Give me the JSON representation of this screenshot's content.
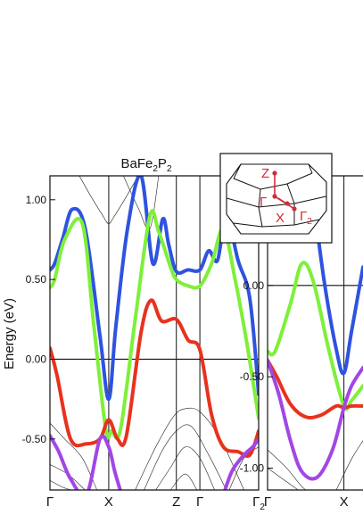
{
  "chart_data": [
    {
      "type": "line",
      "title": "BaFe2P2",
      "title_parts": [
        {
          "text": "BaFe",
          "sub": false
        },
        {
          "text": "2",
          "sub": true
        },
        {
          "text": "P",
          "sub": false
        },
        {
          "text": "2",
          "sub": true
        }
      ],
      "ylabel": "Energy (eV)",
      "ylim": [
        -0.82,
        1.15
      ],
      "y_ticks": [
        1.0,
        0.5,
        0.0,
        -0.5
      ],
      "y_tick_labels": [
        "1.00",
        "0.50",
        "0.00",
        "-0.50"
      ],
      "x_ticks": [
        0,
        1,
        2.15,
        2.55,
        3.55
      ],
      "x_tick_labels": [
        {
          "main": "Γ",
          "sub": ""
        },
        {
          "main": "X",
          "sub": ""
        },
        {
          "main": "Z",
          "sub": ""
        },
        {
          "main": "Γ",
          "sub": ""
        },
        {
          "main": "Γ",
          "sub": "2"
        }
      ],
      "xlim": [
        0,
        3.55
      ],
      "fermi_level": 0.0,
      "series": [
        {
          "color": "#2e53e0",
          "x": [
            0,
            0.08,
            0.22,
            0.38,
            0.6,
            0.85,
            1.0,
            1.12,
            1.32,
            1.55,
            1.75,
            1.92,
            2.02,
            2.15,
            2.35,
            2.55,
            2.7,
            2.85,
            3.0,
            3.2,
            3.4,
            3.55
          ],
          "y": [
            0.56,
            0.6,
            0.76,
            0.94,
            0.82,
            0.15,
            -0.25,
            0.2,
            0.82,
            1.15,
            0.6,
            0.88,
            0.72,
            0.55,
            0.56,
            0.56,
            0.68,
            0.62,
            0.9,
            0.62,
            0.38,
            -0.22
          ]
        },
        {
          "color": "#7ef03a",
          "x": [
            0,
            0.08,
            0.25,
            0.55,
            0.75,
            0.95,
            1.05,
            1.2,
            1.45,
            1.7,
            1.85,
            2.05,
            2.15,
            2.35,
            2.55,
            2.75,
            2.95,
            3.15,
            3.35,
            3.55
          ],
          "y": [
            0.45,
            0.5,
            0.75,
            0.85,
            0.2,
            -0.44,
            -0.45,
            -0.44,
            0.25,
            0.9,
            0.8,
            0.58,
            0.5,
            0.46,
            0.46,
            0.6,
            0.82,
            0.5,
            0.1,
            -0.37
          ]
        },
        {
          "color": "#e8321e",
          "x": [
            0,
            0.12,
            0.35,
            0.62,
            0.85,
            1.0,
            1.15,
            1.3,
            1.55,
            1.72,
            1.9,
            2.15,
            2.35,
            2.55,
            2.75,
            2.95,
            3.2,
            3.4,
            3.55
          ],
          "y": [
            0.07,
            -0.1,
            -0.5,
            -0.53,
            -0.5,
            -0.38,
            -0.5,
            -0.48,
            0.17,
            0.37,
            0.24,
            0.25,
            0.12,
            0.06,
            -0.35,
            -0.55,
            -0.58,
            -0.6,
            -0.45
          ]
        },
        {
          "color": "#a246e6",
          "x": [
            0,
            0.15,
            0.35,
            0.62,
            0.85,
            1.0,
            1.1,
            1.22
          ],
          "y": [
            -0.48,
            -0.58,
            -0.75,
            -0.85,
            -0.5,
            -0.55,
            -0.7,
            -0.85
          ]
        },
        {
          "color": "#a246e6",
          "x": [
            2.95,
            3.1,
            3.3,
            3.45,
            3.55
          ],
          "y": [
            -0.85,
            -0.7,
            -0.6,
            -0.55,
            -0.5
          ]
        }
      ],
      "thin_bands": [
        {
          "x": [
            0.5,
            0.7,
            0.9,
            1.0,
            1.1,
            1.3,
            1.5
          ],
          "y": [
            1.15,
            1.02,
            0.9,
            0.85,
            0.9,
            1.02,
            1.15
          ]
        },
        {
          "x": [
            1.25,
            1.5,
            1.7,
            1.85
          ],
          "y": [
            1.15,
            0.95,
            0.82,
            1.15
          ]
        },
        {
          "x": [
            0,
            0.25,
            0.55,
            0.8
          ],
          "y": [
            -0.4,
            -0.5,
            -0.62,
            -0.82
          ]
        },
        {
          "x": [
            0,
            0.3,
            0.6
          ],
          "y": [
            -0.66,
            -0.72,
            -0.82
          ]
        },
        {
          "x": [
            0,
            0.2,
            0.35
          ],
          "y": [
            -0.76,
            -0.8,
            -0.82
          ]
        },
        {
          "x": [
            1.45,
            1.8,
            2.1,
            2.3,
            2.55,
            2.9,
            3.3
          ],
          "y": [
            -0.82,
            -0.55,
            -0.36,
            -0.31,
            -0.33,
            -0.5,
            -0.82
          ]
        },
        {
          "x": [
            1.6,
            1.9,
            2.15,
            2.4,
            2.7,
            3.0
          ],
          "y": [
            -0.82,
            -0.58,
            -0.45,
            -0.42,
            -0.6,
            -0.82
          ]
        },
        {
          "x": [
            1.8,
            2.05,
            2.3,
            2.55,
            2.8
          ],
          "y": [
            -0.82,
            -0.68,
            -0.55,
            -0.62,
            -0.82
          ]
        },
        {
          "x": [
            2.05,
            2.3,
            2.5
          ],
          "y": [
            -0.82,
            -0.72,
            -0.82
          ]
        },
        {
          "x": [
            3.05,
            3.3,
            3.55
          ],
          "y": [
            -0.82,
            -0.62,
            -0.55
          ]
        }
      ]
    },
    {
      "type": "line",
      "ylim": [
        -1.12,
        0.6
      ],
      "y_ticks": [
        0.0,
        -0.5,
        -1.0
      ],
      "y_tick_labels": [
        "0.00",
        "-0.50",
        "-1.00"
      ],
      "x_ticks": [
        0,
        1
      ],
      "x_tick_labels": [
        {
          "main": "Γ",
          "sub": ""
        },
        {
          "main": "X",
          "sub": ""
        }
      ],
      "xlim": [
        0,
        1.25
      ],
      "fermi_level": 0.0,
      "series": [
        {
          "color": "#2e53e0",
          "x": [
            0.55,
            0.62,
            0.75,
            0.9,
            1.0,
            1.1,
            1.25
          ],
          "y": [
            0.6,
            0.4,
            0.0,
            -0.35,
            -0.48,
            -0.25,
            0.1
          ]
        },
        {
          "color": "#7ef03a",
          "x": [
            0,
            0.1,
            0.3,
            0.45,
            0.6,
            0.8,
            1.0,
            1.1,
            1.25
          ],
          "y": [
            -0.36,
            -0.36,
            -0.1,
            0.12,
            0.02,
            -0.35,
            -0.66,
            -0.63,
            -0.55
          ]
        },
        {
          "color": "#e8321e",
          "x": [
            0,
            0.12,
            0.3,
            0.5,
            0.7,
            0.9,
            1.0,
            1.1,
            1.25
          ],
          "y": [
            -0.41,
            -0.5,
            -0.65,
            -0.72,
            -0.71,
            -0.66,
            -0.67,
            -0.66,
            -0.66
          ]
        },
        {
          "color": "#a246e6",
          "x": [
            0,
            0.15,
            0.3,
            0.45,
            0.65,
            0.85,
            1.0,
            1.1,
            1.25
          ],
          "y": [
            -0.41,
            -0.6,
            -0.85,
            -1.02,
            -1.05,
            -0.9,
            -0.67,
            -0.55,
            -0.45
          ]
        }
      ],
      "thin_bands": [
        {
          "x": [
            0,
            0.25,
            0.5,
            0.7
          ],
          "y": [
            -0.9,
            -1.0,
            -1.12,
            -1.12
          ]
        },
        {
          "x": [
            0,
            0.2,
            0.4
          ],
          "y": [
            -1.0,
            -1.06,
            -1.12
          ]
        },
        {
          "x": [
            0.9,
            1.1,
            1.25
          ],
          "y": [
            -1.12,
            -0.95,
            -0.85
          ]
        }
      ]
    }
  ],
  "inset": {
    "labels": [
      {
        "main": "Z",
        "sub": ""
      },
      {
        "main": "Γ",
        "sub": ""
      },
      {
        "main": "X",
        "sub": ""
      },
      {
        "main": "Γ",
        "sub": "2"
      }
    ]
  },
  "colors": {
    "blue": "#2e53e0",
    "green": "#7ef03a",
    "red": "#e8321e",
    "purple": "#a246e6",
    "label_red": "#d22b36"
  }
}
